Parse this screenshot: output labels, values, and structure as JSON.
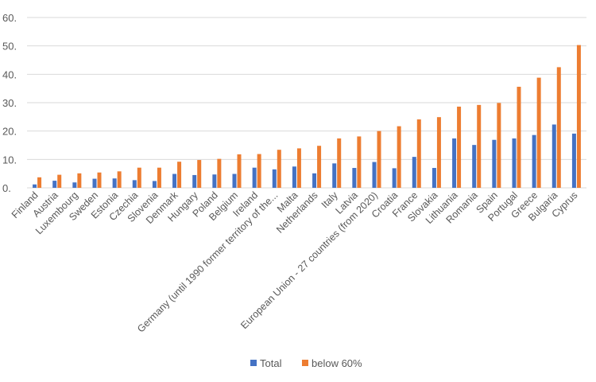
{
  "chart_data": {
    "type": "bar",
    "categories": [
      "Finland",
      "Austria",
      "Luxembourg",
      "Sweden",
      "Estonia",
      "Czechia",
      "Slovenia",
      "Denmark",
      "Hungary",
      "Poland",
      "Belgium",
      "Ireland",
      "Germany (until 1990 former territory of the...",
      "Malta",
      "Netherlands",
      "Italy",
      "Latvia",
      "European Union - 27 countries (from 2020)",
      "Croatia",
      "France",
      "Slovakia",
      "Lithuania",
      "Romania",
      "Spain",
      "Portugal",
      "Greece",
      "Bulgaria",
      "Cyprus"
    ],
    "series": [
      {
        "name": "Total",
        "color": "#4472C4",
        "values": [
          1.2,
          2.5,
          1.9,
          3.2,
          3.3,
          2.7,
          2.4,
          4.9,
          4.5,
          4.7,
          4.9,
          7.1,
          6.5,
          7.5,
          5.1,
          8.6,
          7.0,
          9.1,
          6.9,
          10.9,
          7.0,
          17.4,
          15.1,
          16.9,
          17.4,
          18.6,
          22.3,
          19.1
        ]
      },
      {
        "name": "below 60%",
        "color": "#ED7D31",
        "values": [
          3.7,
          4.6,
          5.1,
          5.4,
          5.8,
          7.1,
          7.1,
          9.2,
          9.8,
          10.2,
          11.8,
          11.9,
          13.4,
          13.9,
          14.8,
          17.4,
          18.1,
          20.0,
          21.7,
          24.1,
          24.9,
          28.6,
          29.2,
          29.9,
          35.6,
          38.8,
          42.5,
          50.3
        ]
      }
    ],
    "y_ticks": [
      "0.",
      "10.",
      "20.",
      "30.",
      "40.",
      "50.",
      "60."
    ],
    "ylim": [
      0,
      60
    ],
    "grid": true,
    "legend_position": "bottom"
  }
}
